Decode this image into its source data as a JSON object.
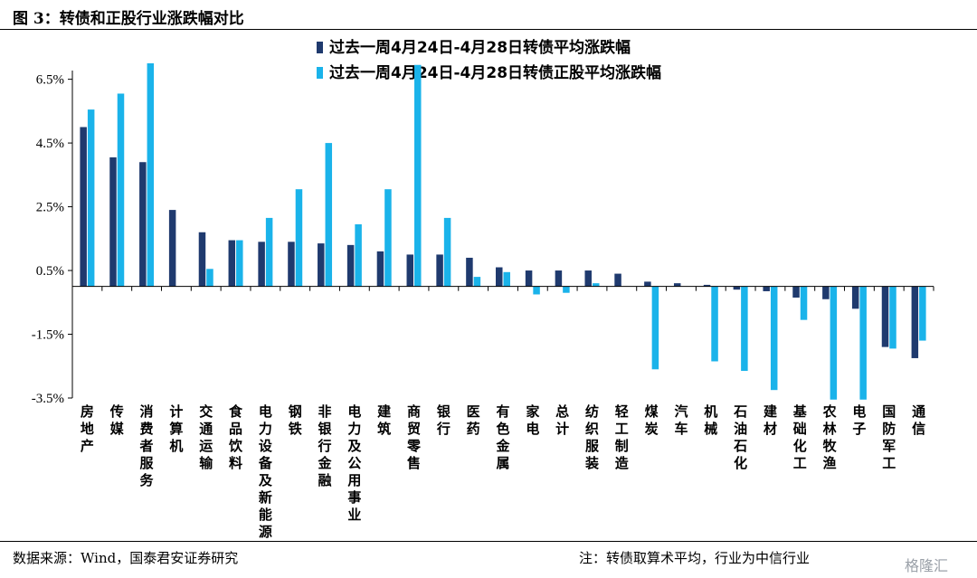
{
  "header": {
    "title": "图 3：转债和正股行业涨跌幅对比"
  },
  "footer": {
    "source": "数据来源：Wind，国泰君安证券研究",
    "note": "注：转债取算术平均，行业为中信行业",
    "watermark": "格隆汇"
  },
  "colors": {
    "series1": "#1f3a6e",
    "series2": "#1ab3ea"
  },
  "chart_data": {
    "type": "bar",
    "title": "",
    "xlabel": "",
    "ylabel": "",
    "ylim": [
      -3.5,
      7.0
    ],
    "yticks": [
      -3.5,
      -1.5,
      0.5,
      2.5,
      4.5,
      6.5
    ],
    "ytick_labels": [
      "-3.5%",
      "-1.5%",
      "0.5%",
      "2.5%",
      "4.5%",
      "6.5%"
    ],
    "legend_position": "top-center",
    "categories": [
      "房地产",
      "传媒",
      "消费者服务",
      "计算机",
      "交通运输",
      "食品饮料",
      "电力设备及新能源",
      "钢铁",
      "非银行金融",
      "电力及公用事业",
      "建筑",
      "商贸零售",
      "银行",
      "医药",
      "有色金属",
      "家电",
      "总计",
      "纺织服装",
      "轻工制造",
      "煤炭",
      "汽车",
      "机械",
      "石油石化",
      "建材",
      "基础化工",
      "农林牧渔",
      "电子",
      "国防军工",
      "通信"
    ],
    "series": [
      {
        "name": "过去一周4月24日-4月28日转债平均涨跌幅",
        "values": [
          5.0,
          4.05,
          3.9,
          2.4,
          1.7,
          1.45,
          1.4,
          1.4,
          1.35,
          1.3,
          1.1,
          1.0,
          1.0,
          0.9,
          0.6,
          0.5,
          0.5,
          0.5,
          0.4,
          0.15,
          0.1,
          0.05,
          -0.1,
          -0.15,
          -0.35,
          -0.4,
          -0.7,
          -1.9,
          -2.25
        ]
      },
      {
        "name": "过去一周4月24日-4月28日转债正股平均涨跌幅",
        "values": [
          5.55,
          6.05,
          7.0,
          0.0,
          0.55,
          1.45,
          2.15,
          3.05,
          4.5,
          1.95,
          3.05,
          6.95,
          2.15,
          0.3,
          0.45,
          -0.25,
          -0.2,
          0.1,
          0.0,
          -2.6,
          0.0,
          -2.35,
          -2.65,
          -3.25,
          -1.05,
          -3.55,
          -3.55,
          -1.95,
          -1.7
        ]
      }
    ]
  }
}
